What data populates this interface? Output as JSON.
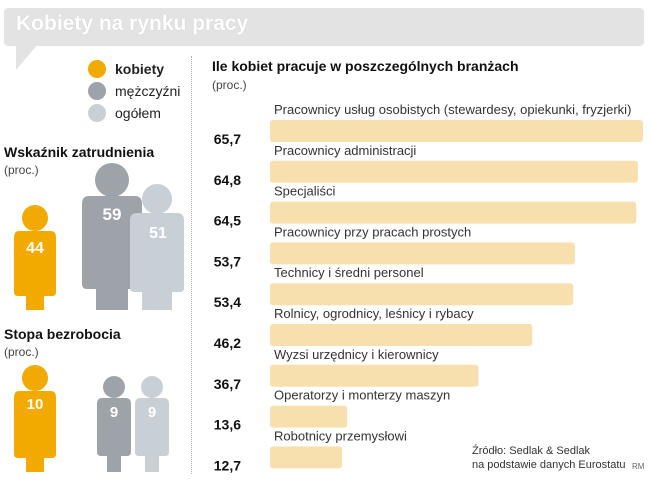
{
  "header": {
    "title": "Kobiety na rynku pracy"
  },
  "legend": [
    {
      "label": "kobiety",
      "color": "#f2a900",
      "bold": true
    },
    {
      "label": "mężczyźni",
      "color": "#9da3a8",
      "bold": false
    },
    {
      "label": "ogółem",
      "color": "#c9d0d5",
      "bold": false
    }
  ],
  "employment": {
    "title": "Wskaźnik zatrudnienia",
    "unit": "(proc.)",
    "women": "44",
    "men": "59",
    "total": "51"
  },
  "unemployment": {
    "title": "Stopa bezrobocia",
    "unit": "(proc.)",
    "women": "10",
    "men": "9",
    "total": "9"
  },
  "bar_section": {
    "title": "Ile kobiet pracuje w poszczególnych branżach",
    "unit": "(proc.)"
  },
  "chart_data": [
    {
      "type": "bar",
      "orientation": "horizontal",
      "title": "Ile kobiet pracuje w poszczególnych branżach",
      "unit": "(proc.)",
      "bar_color": "#f7e0ad",
      "categories": [
        "Pracownicy usług osobistych (stewardesy, opiekunki, fryzjerki)",
        "Pracownicy administracji",
        "Specjaliści",
        "Pracownicy przy pracach prostych",
        "Technicy i średni personel",
        "Rolnicy, ogrodnicy, leśnicy i rybacy",
        "Wyzsi urzędnicy i kierownicy",
        "Operatorzy i monterzy maszyn",
        "Robotnicy przemysłowi"
      ],
      "values": [
        65.7,
        64.8,
        64.5,
        53.7,
        53.4,
        46.2,
        36.7,
        13.6,
        12.7
      ],
      "value_labels": [
        "65,7",
        "64,8",
        "64,5",
        "53,7",
        "53,4",
        "46,2",
        "36,7",
        "13,6",
        "12,7"
      ],
      "xlim": [
        0,
        65.7
      ]
    },
    {
      "type": "pictogram",
      "title": "Wskaźnik zatrudnienia",
      "unit": "(proc.)",
      "categories": [
        "kobiety",
        "mężczyźni",
        "ogółem"
      ],
      "values": [
        44,
        59,
        51
      ]
    },
    {
      "type": "pictogram",
      "title": "Stopa bezrobocia",
      "unit": "(proc.)",
      "categories": [
        "kobiety",
        "mężczyźni",
        "ogółem"
      ],
      "values": [
        10,
        9,
        9
      ]
    }
  ],
  "source": {
    "line1": "Źródło: Sedlak & Sedlak",
    "line2": "na podstawie danych Eurostatu"
  },
  "credit": "RM"
}
